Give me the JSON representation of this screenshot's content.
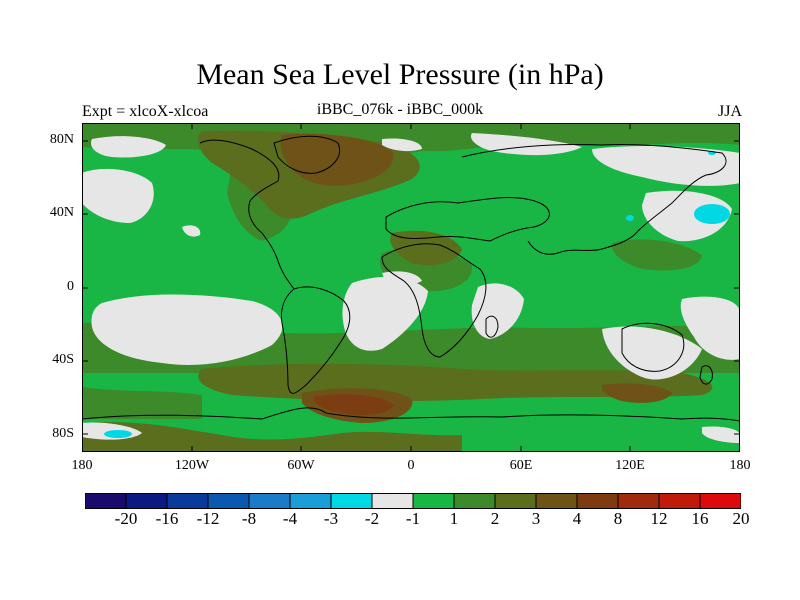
{
  "title": "Mean Sea Level Pressure (in hPa)",
  "left_label": "Expt = xlcoX-xlcoa",
  "center_label": "iBBC_076k - iBBC_000k",
  "right_label": "JJA",
  "y_axis_labels": [
    "80N",
    "40N",
    "0",
    "40S",
    "80S"
  ],
  "x_axis_labels": [
    "180",
    "120W",
    "60W",
    "0",
    "60E",
    "120E",
    "180"
  ],
  "colorbar": {
    "colors": [
      "#1a0a6b",
      "#0a1a80",
      "#0a3a9a",
      "#0a58b0",
      "#1a7cc6",
      "#1a9ed8",
      "#00d8e4",
      "#e6e6e6",
      "#1ab645",
      "#3d8a2a",
      "#5a6e1e",
      "#6e5218",
      "#7e3a10",
      "#a02a0c",
      "#c01a0a",
      "#dc0a0a"
    ],
    "labels": [
      "-20",
      "-16",
      "-12",
      "-8",
      "-4",
      "-3",
      "-2",
      "-1",
      "1",
      "2",
      "3",
      "4",
      "8",
      "12",
      "16",
      "20"
    ]
  },
  "chart_data": {
    "type": "heatmap",
    "title": "Mean Sea Level Pressure (in hPa)",
    "subtitle": "iBBC_076k - iBBC_000k",
    "experiment": "Expt = xlcoX-xlcoa",
    "season": "JJA",
    "x_range": [
      -180,
      180
    ],
    "y_range": [
      -90,
      90
    ],
    "x_ticks": [
      "180",
      "120W",
      "60W",
      "0",
      "60E",
      "120E",
      "180"
    ],
    "y_ticks": [
      "80N",
      "40N",
      "0",
      "40S",
      "80S"
    ],
    "contour_levels": [
      -20,
      -16,
      -12,
      -8,
      -4,
      -3,
      -2,
      -1,
      1,
      2,
      3,
      4,
      8,
      12,
      16,
      20
    ]
  }
}
